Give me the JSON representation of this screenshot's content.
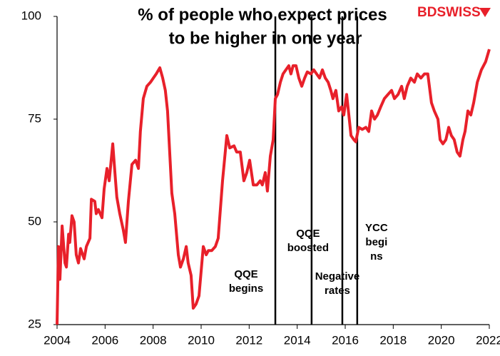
{
  "chart_data": {
    "type": "line",
    "title": [
      "% of people who expect prices",
      "to be higher in one year"
    ],
    "logo": "BDSWISS",
    "xlim": [
      2004,
      2022
    ],
    "xticks": [
      2004,
      2006,
      2008,
      2010,
      2012,
      2014,
      2016,
      2018,
      2020,
      2022
    ],
    "ylim": [
      25,
      100
    ],
    "yticks": [
      25,
      50,
      75,
      100
    ],
    "grid": false,
    "annotations": [
      {
        "x": 2013.09,
        "lines": [
          "QQE",
          "begins"
        ]
      },
      {
        "x": 2014.6,
        "lines": [
          "QQE",
          "boosted"
        ]
      },
      {
        "x": 2015.88,
        "lines": [
          "Negative",
          "rates"
        ]
      },
      {
        "x": 2016.5,
        "lines": [
          "YCC",
          "begi",
          "ns"
        ]
      }
    ],
    "series": [
      {
        "color": "#e8202a",
        "x": [
          2004.0,
          2004.06,
          2004.12,
          2004.21,
          2004.33,
          2004.39,
          2004.48,
          2004.53,
          2004.62,
          2004.71,
          2004.8,
          2004.89,
          2004.98,
          2005.13,
          2005.22,
          2005.37,
          2005.43,
          2005.57,
          2005.63,
          2005.72,
          2005.87,
          2005.96,
          2006.08,
          2006.17,
          2006.32,
          2006.41,
          2006.49,
          2006.61,
          2006.76,
          2006.85,
          2006.97,
          2007.12,
          2007.27,
          2007.39,
          2007.47,
          2007.59,
          2007.74,
          2007.89,
          2008.01,
          2008.13,
          2008.28,
          2008.4,
          2008.51,
          2008.6,
          2008.69,
          2008.78,
          2008.9,
          2009.05,
          2009.14,
          2009.26,
          2009.38,
          2009.46,
          2009.58,
          2009.67,
          2009.79,
          2009.91,
          2010.09,
          2010.21,
          2010.3,
          2010.44,
          2010.59,
          2010.71,
          2010.89,
          2011.07,
          2011.19,
          2011.37,
          2011.48,
          2011.63,
          2011.78,
          2011.9,
          2012.02,
          2012.17,
          2012.32,
          2012.46,
          2012.55,
          2012.67,
          2012.76,
          2012.88,
          2013.0,
          2013.09,
          2013.18,
          2013.3,
          2013.41,
          2013.53,
          2013.65,
          2013.74,
          2013.83,
          2013.95,
          2014.07,
          2014.19,
          2014.31,
          2014.42,
          2014.57,
          2014.69,
          2014.81,
          2014.93,
          2015.05,
          2015.17,
          2015.29,
          2015.4,
          2015.49,
          2015.61,
          2015.73,
          2015.85,
          2015.94,
          2016.06,
          2016.15,
          2016.24,
          2016.36,
          2016.44,
          2016.56,
          2016.71,
          2016.86,
          2016.98,
          2017.1,
          2017.22,
          2017.34,
          2017.48,
          2017.63,
          2017.78,
          2017.93,
          2018.05,
          2018.2,
          2018.35,
          2018.46,
          2018.58,
          2018.73,
          2018.88,
          2019.0,
          2019.15,
          2019.3,
          2019.44,
          2019.59,
          2019.71,
          2019.86,
          2019.95,
          2020.07,
          2020.19,
          2020.31,
          2020.42,
          2020.54,
          2020.66,
          2020.78,
          2020.9,
          2020.99,
          2021.11,
          2021.23,
          2021.35,
          2021.5,
          2021.67,
          2021.85,
          2022.0
        ],
        "values": [
          25,
          44,
          36,
          49,
          40,
          39,
          47,
          45,
          51.5,
          50,
          42,
          40,
          43.5,
          41,
          44,
          46,
          55.5,
          55,
          52,
          53,
          51,
          58,
          63,
          60,
          69,
          62,
          56,
          52,
          48,
          45,
          55,
          64,
          65,
          63,
          72,
          80,
          83,
          84,
          85,
          86,
          87.5,
          85,
          82,
          77,
          67,
          57,
          52,
          42,
          39,
          41,
          44,
          40,
          37,
          29,
          30,
          32,
          44,
          42,
          43,
          43,
          44,
          46,
          60,
          71,
          68,
          68.5,
          67,
          67,
          60,
          62,
          65,
          59,
          59,
          60,
          59,
          62,
          57.5,
          66,
          70,
          80,
          81,
          84,
          86,
          87,
          88,
          86,
          88,
          88,
          85,
          83,
          85,
          86.5,
          86,
          87,
          86,
          85,
          87,
          85,
          84,
          82,
          80,
          82,
          77,
          78,
          76,
          81,
          76,
          71,
          70,
          69.5,
          73,
          72.5,
          73,
          72,
          77,
          75,
          76,
          78,
          80,
          81,
          82,
          80,
          81,
          83,
          80,
          83,
          85,
          84,
          86,
          85,
          86,
          86,
          79,
          77,
          75,
          70,
          69,
          70,
          73,
          71,
          70,
          67,
          66,
          70,
          72,
          77,
          76,
          79,
          84,
          87,
          89,
          92
        ]
      }
    ]
  }
}
